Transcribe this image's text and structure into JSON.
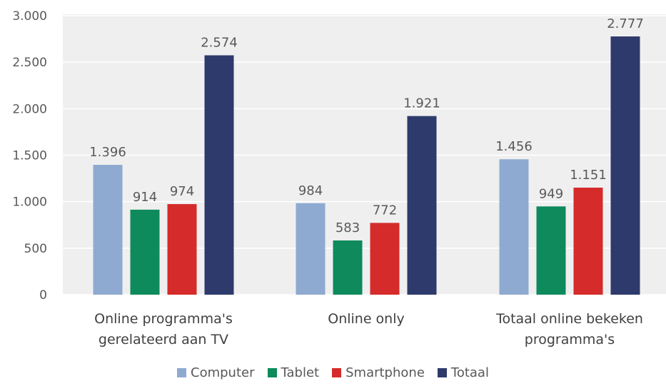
{
  "chart_data": {
    "type": "bar",
    "categories": [
      [
        "Online programma's",
        "gerelateerd aan TV"
      ],
      [
        "Online only"
      ],
      [
        "Totaal online bekeken",
        "programma's"
      ]
    ],
    "series": [
      {
        "name": "Computer",
        "color": "#8eaad1",
        "values": [
          1396,
          984,
          1456
        ],
        "labels": [
          "1.396",
          "984",
          "1.456"
        ]
      },
      {
        "name": "Tablet",
        "color": "#0e8a5c",
        "values": [
          914,
          583,
          949
        ],
        "labels": [
          "914",
          "583",
          "949"
        ]
      },
      {
        "name": "Smartphone",
        "color": "#d52b2b",
        "values": [
          974,
          772,
          1151
        ],
        "labels": [
          "974",
          "772",
          "1.151"
        ]
      },
      {
        "name": "Totaal",
        "color": "#2e3a6b",
        "values": [
          2574,
          1921,
          2777
        ],
        "labels": [
          "2.574",
          "1.921",
          "2.777"
        ]
      }
    ],
    "ylim": [
      0,
      3000
    ],
    "yticks": [
      0,
      500,
      1000,
      1500,
      2000,
      2500,
      3000
    ],
    "ytick_labels": [
      "0",
      "500",
      "1.000",
      "1.500",
      "2.000",
      "2.500",
      "3.000"
    ],
    "grid": true,
    "legend_position": "bottom",
    "plot_background": "#efefef"
  }
}
